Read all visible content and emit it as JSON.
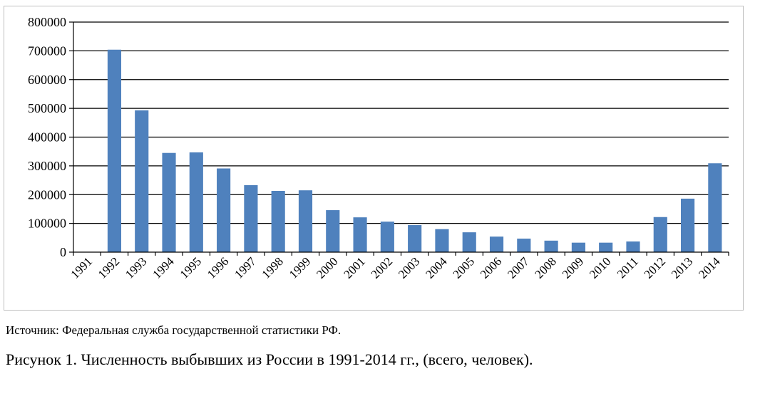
{
  "chart_data": {
    "type": "bar",
    "categories": [
      "1991",
      "1992",
      "1993",
      "1994",
      "1995",
      "1996",
      "1997",
      "1998",
      "1999",
      "2000",
      "2001",
      "2002",
      "2003",
      "2004",
      "2005",
      "2006",
      "2007",
      "2008",
      "2009",
      "2010",
      "2011",
      "2012",
      "2013",
      "2014"
    ],
    "values": [
      0,
      704000,
      493000,
      345000,
      347000,
      291000,
      233000,
      213000,
      215000,
      146000,
      121000,
      106000,
      94000,
      80000,
      69000,
      54000,
      47000,
      40000,
      33000,
      33000,
      37000,
      122000,
      186000,
      309000
    ],
    "ylim": [
      0,
      800000
    ],
    "yticks": [
      "0",
      "100000",
      "200000",
      "300000",
      "400000",
      "500000",
      "600000",
      "700000",
      "800000"
    ],
    "title": "",
    "xlabel": "",
    "ylabel": "",
    "grid": true,
    "bar_color": "#4f81bd",
    "grid_color": "#000000"
  },
  "source_note": "Источник: Федеральная служба государственной статистики РФ.",
  "figure_caption": "Рисунок 1. Численность выбывших из России в 1991-2014 гг., (всего, человек)."
}
